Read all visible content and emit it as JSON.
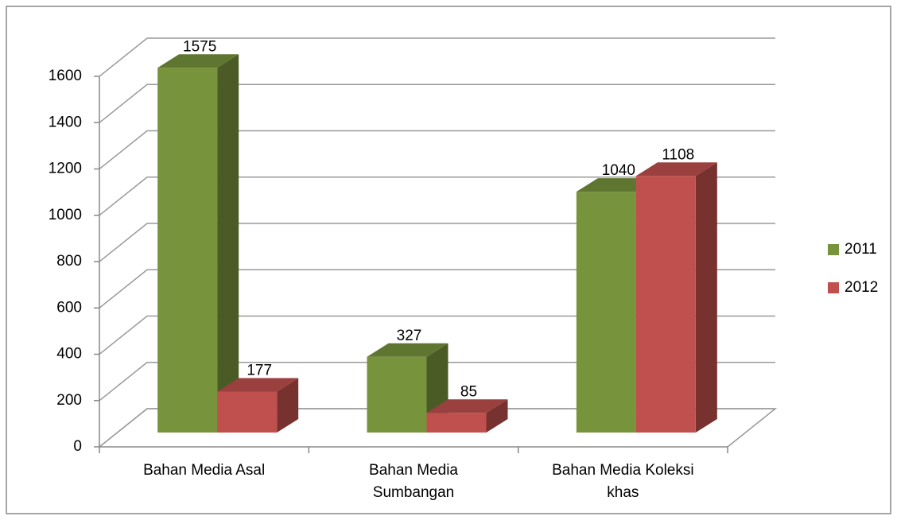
{
  "chart_data": {
    "type": "bar3d",
    "categories": [
      "Bahan Media Asal",
      "Bahan Media Sumbangan",
      "Bahan Media Koleksi khas"
    ],
    "series": [
      {
        "name": "2011",
        "color": "#77933c",
        "values": [
          1575,
          327,
          1040
        ]
      },
      {
        "name": "2012",
        "color": "#c0504d",
        "values": [
          177,
          85,
          1108
        ]
      }
    ],
    "ylim": [
      0,
      1600
    ],
    "yticks": [
      0,
      200,
      400,
      600,
      800,
      1000,
      1200,
      1400,
      1600
    ],
    "grid": true,
    "legend": "right"
  }
}
